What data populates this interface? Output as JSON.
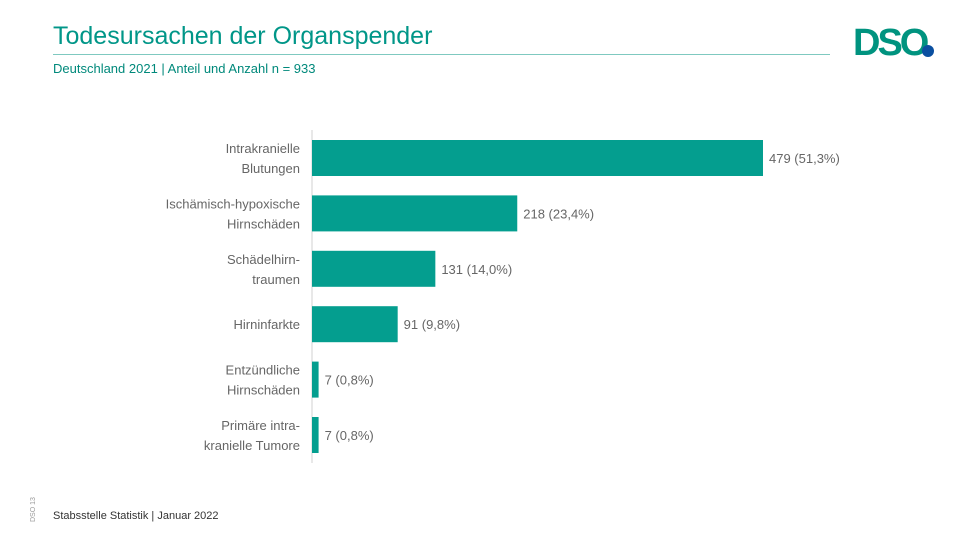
{
  "header": {
    "title": "Todesursachen der Organspender",
    "subtitle": "Deutschland 2021 | Anteil und Anzahl n = 933"
  },
  "logo": {
    "text": "DSO",
    "colors": {
      "letters": "#00937f",
      "dot": "#0a4fa0"
    }
  },
  "footer": {
    "source": "Stabsstelle Statistik | Januar 2022",
    "slide_id": "DSO 13"
  },
  "chart_data": {
    "type": "bar",
    "orientation": "horizontal",
    "categories": [
      [
        "Intrakranielle",
        "Blutungen"
      ],
      [
        "Ischämisch-hypoxische",
        "Hirnschäden"
      ],
      [
        "Schädelhirn-",
        "traumen"
      ],
      [
        "Hirninfarkte"
      ],
      [
        "Entzündliche",
        "Hirnschäden"
      ],
      [
        "Primäre intra-",
        "kranielle Tumore"
      ]
    ],
    "values": [
      479,
      218,
      131,
      91,
      7,
      7
    ],
    "data_labels": [
      "479 (51,3%)",
      "218 (23,4%)",
      "131 (14,0%)",
      "91 (9,8%)",
      "7 (0,8%)",
      "7 (0,8%)"
    ],
    "bar_color": "#049e8f",
    "grid": false,
    "legend": "none"
  }
}
